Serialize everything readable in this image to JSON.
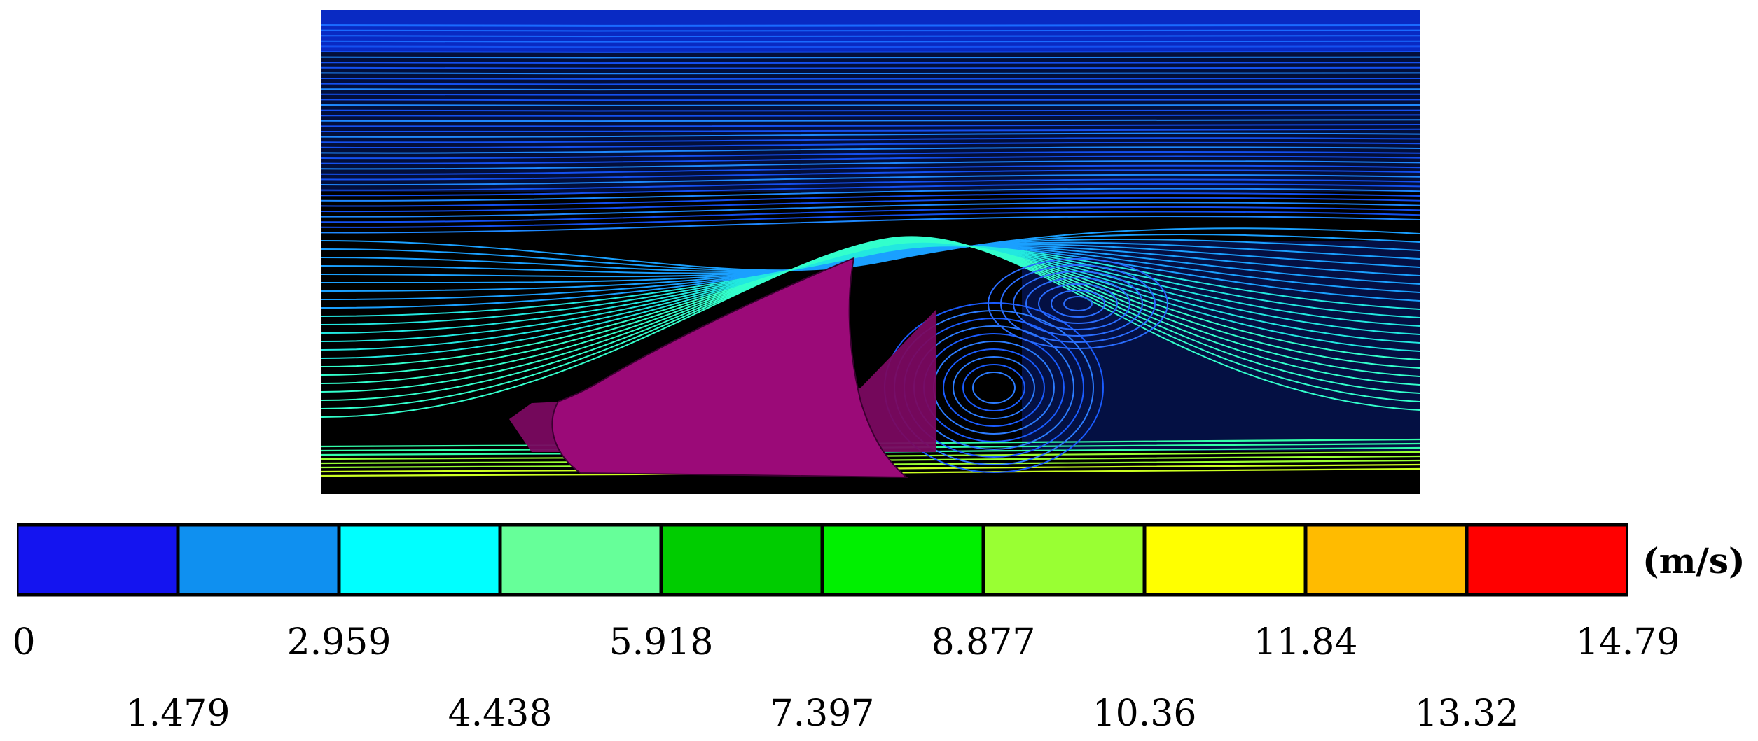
{
  "figure": {
    "unit": "(m/s)",
    "legend_colors": [
      "#1414f0",
      "#0f90f0",
      "#00ffff",
      "#66ff99",
      "#00cc00",
      "#00f000",
      "#99ff33",
      "#ffff00",
      "#ffbb00",
      "#ff0000"
    ],
    "tick_labels_top": [
      "0",
      "2.959",
      "5.918",
      "8.877",
      "11.84",
      "14.79"
    ],
    "tick_labels_bottom": [
      "1.479",
      "4.438",
      "7.397",
      "10.36",
      "13.32"
    ],
    "background_color": "#000000",
    "body_color": "#9b0a78"
  }
}
